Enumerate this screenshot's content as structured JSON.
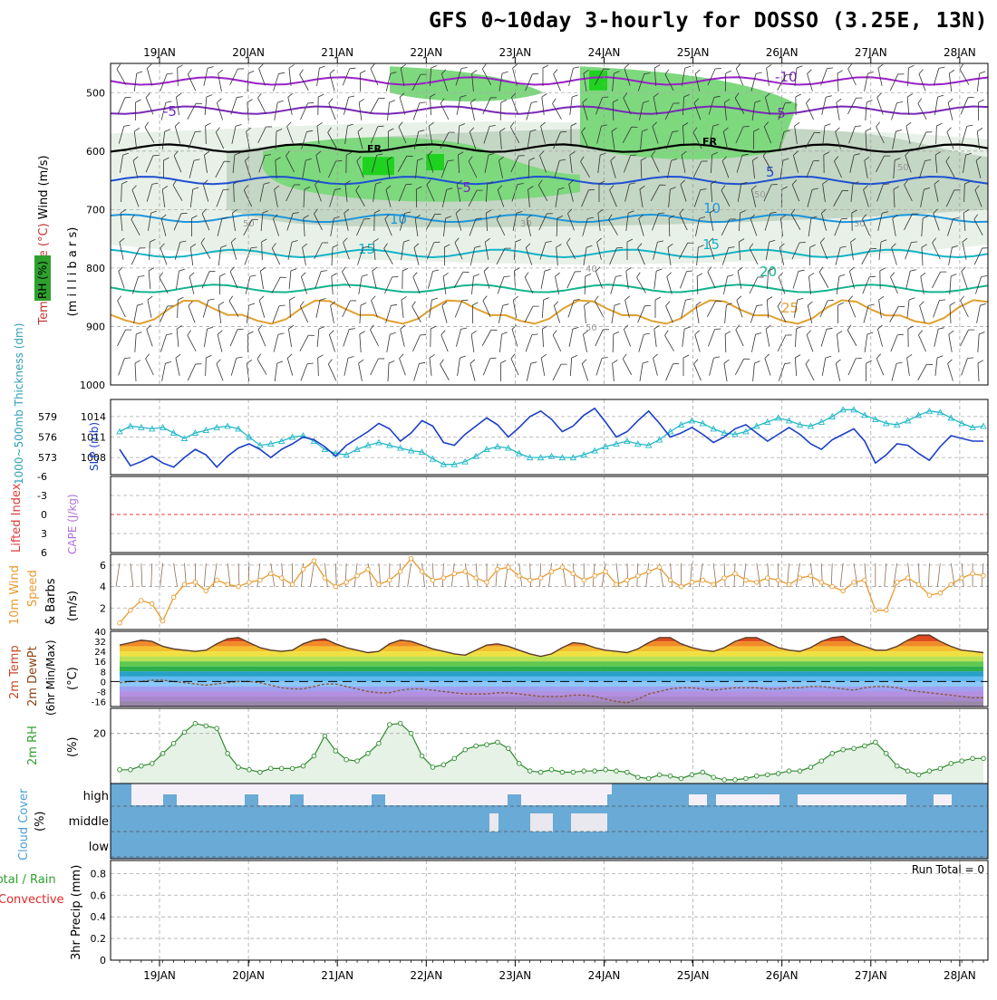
{
  "title": "GFS 0~10day 3-hourly for DOSSO (3.25E, 13N)",
  "chart_data": [
    {
      "id": "upper_air",
      "type": "heatmap",
      "ylabel_parts": [
        {
          "text": "Wind (m/s)",
          "color": "#000000"
        },
        {
          "text": "Temperature (°C)",
          "color": "#c83232"
        },
        {
          "text": "RH (%)",
          "color": "#2ea02e"
        }
      ],
      "ylabel2": "(m i l l i b a r s)",
      "ylim": [
        450,
        1000
      ],
      "ytick_labels": [
        "500",
        "600",
        "700",
        "800",
        "900",
        "1000"
      ],
      "ytick_values": [
        500,
        600,
        700,
        800,
        900,
        1000
      ],
      "x_dates": [
        "19JAN",
        "20JAN",
        "21JAN",
        "22JAN",
        "23JAN",
        "24JAN",
        "25JAN",
        "26JAN",
        "27JAN",
        "28JAN"
      ],
      "contour_labels": [
        "-10",
        "-5",
        "-5",
        "FR",
        "FR",
        "-5",
        "5",
        "10",
        "10",
        "15",
        "15",
        "20",
        "25"
      ],
      "rh_labels": [
        "50",
        "50",
        "50",
        "30",
        "30",
        "40",
        "50"
      ],
      "isotherms": [
        {
          "label": "-10",
          "color": "#9b20c8",
          "pressure_mb": 480
        },
        {
          "label": "-5",
          "color": "#7a28b8",
          "pressure_mb": 530
        },
        {
          "label": "FR",
          "color": "#000000",
          "pressure_mb": 595
        },
        {
          "label": "5",
          "color": "#1e50d2",
          "pressure_mb": 650
        },
        {
          "label": "10",
          "color": "#1e96dc",
          "pressure_mb": 715
        },
        {
          "label": "15",
          "color": "#14b4c8",
          "pressure_mb": 775
        },
        {
          "label": "20",
          "color": "#14b48c",
          "pressure_mb": 835
        },
        {
          "label": "25",
          "color": "#e0a030",
          "pressure_mb": 880
        }
      ]
    },
    {
      "id": "thickness_slp",
      "type": "line",
      "ylabel_left": "1000~500mb Thickness (dm)",
      "ylabel_right": "SLP (mb)",
      "yticks_left": [
        "579",
        "576",
        "573"
      ],
      "yticks_right": [
        "1014",
        "1011",
        "1008"
      ],
      "ylim_thickness": [
        570.5,
        581.5
      ],
      "series": [
        {
          "name": "Thickness",
          "color": "#22b8c8",
          "values": [
            576.8,
            577.6,
            577.4,
            577.2,
            577.4,
            576.6,
            575.8,
            576.6,
            577.0,
            577.4,
            577.6,
            577.2,
            576.0,
            574.8,
            575.0,
            575.4,
            576.0,
            576.2,
            575.4,
            574.2,
            573.6,
            573.4,
            574.2,
            574.8,
            575.2,
            574.8,
            574.4,
            574.0,
            573.8,
            572.8,
            572.0,
            572.0,
            572.4,
            573.2,
            574.2,
            574.6,
            574.4,
            573.6,
            573.0,
            573.0,
            573.2,
            573.0,
            573.0,
            573.4,
            574.0,
            574.6,
            575.0,
            575.4,
            575.0,
            574.8,
            575.6,
            576.8,
            577.8,
            578.4,
            578.0,
            577.2,
            576.6,
            576.4,
            576.8,
            577.6,
            578.2,
            578.8,
            578.4,
            577.8,
            577.6,
            578.2,
            579.0,
            580.0,
            580.0,
            579.2,
            578.6,
            578.0,
            577.8,
            578.4,
            579.2,
            579.8,
            579.6,
            578.8,
            578.0,
            577.4,
            577.6
          ]
        },
        {
          "name": "SLP",
          "color": "#1a3fc8",
          "values": [
            1009.2,
            1006.8,
            1007.4,
            1008.2,
            1007.2,
            1006.6,
            1008.0,
            1009.2,
            1008.4,
            1006.6,
            1008.2,
            1009.4,
            1010.0,
            1009.2,
            1008.0,
            1009.2,
            1010.0,
            1011.0,
            1010.6,
            1009.6,
            1008.2,
            1009.8,
            1010.8,
            1011.8,
            1013.0,
            1012.2,
            1010.4,
            1011.6,
            1013.4,
            1012.6,
            1010.2,
            1009.8,
            1011.4,
            1012.6,
            1013.8,
            1012.8,
            1011.0,
            1012.4,
            1014.0,
            1014.8,
            1013.6,
            1011.8,
            1012.6,
            1014.2,
            1015.2,
            1013.2,
            1011.0,
            1011.8,
            1013.4,
            1014.8,
            1013.0,
            1011.0,
            1011.6,
            1012.4,
            1011.4,
            1010.2,
            1011.0,
            1012.2,
            1012.8,
            1011.6,
            1010.4,
            1011.4,
            1012.4,
            1011.4,
            1010.0,
            1009.2,
            1010.6,
            1011.4,
            1012.2,
            1010.4,
            1007.2,
            1008.4,
            1010.0,
            1009.8,
            1008.6,
            1007.6,
            1009.6,
            1011.2,
            1010.8,
            1010.4,
            1010.4
          ]
        }
      ]
    },
    {
      "id": "cape_li",
      "type": "line",
      "ylabel_left": "Lifted Index",
      "ylabel_right": "CAPE (J/kg)",
      "yticks": [
        "-6",
        "-3",
        "0",
        "3",
        "6"
      ],
      "ylim": [
        -6,
        6
      ],
      "zero_line": 0
    },
    {
      "id": "wind10m",
      "type": "line",
      "ylabel": "10m Wind Speed & Barbs (m/s)",
      "ylabel_parts": [
        {
          "text": "10m Wind",
          "color": "#e89a30"
        },
        {
          "text": "Speed",
          "color": "#e89a30"
        },
        {
          "text": "& Barbs",
          "color": "#000000"
        },
        {
          "text": "(m/s)",
          "color": "#000000"
        }
      ],
      "yticks": [
        "2",
        "4",
        "6"
      ],
      "ylim": [
        0,
        7
      ],
      "series": [
        {
          "name": "Wind Speed",
          "color": "#e89a30",
          "values": [
            0.6,
            1.8,
            2.7,
            2.4,
            0.8,
            3.0,
            4.2,
            4.4,
            3.6,
            4.6,
            4.2,
            4.0,
            4.4,
            4.6,
            5.2,
            4.8,
            4.2,
            5.6,
            6.4,
            4.8,
            4.0,
            4.4,
            5.0,
            5.6,
            4.2,
            4.6,
            5.4,
            6.6,
            5.4,
            4.6,
            4.8,
            5.2,
            5.4,
            4.8,
            4.4,
            5.6,
            5.8,
            5.0,
            4.6,
            4.8,
            5.4,
            5.8,
            5.2,
            4.6,
            5.0,
            5.4,
            4.2,
            4.6,
            5.0,
            5.4,
            5.8,
            4.6,
            4.0,
            4.4,
            4.6,
            4.2,
            4.8,
            5.2,
            4.6,
            4.4,
            4.8,
            4.6,
            4.2,
            4.8,
            5.0,
            4.4,
            4.0,
            3.6,
            4.4,
            4.6,
            1.8,
            1.8,
            4.4,
            4.8,
            4.2,
            3.2,
            3.4,
            4.2,
            4.8,
            5.2,
            5.0
          ]
        }
      ]
    },
    {
      "id": "temp2m",
      "type": "area",
      "ylabel_parts": [
        {
          "text": "2m Temp",
          "color": "#c84828"
        },
        {
          "text": "2m DewPt",
          "color": "#8b4513"
        },
        {
          "text": "(6hr Min/Max)",
          "color": "#000000"
        },
        {
          "text": "(°C)",
          "color": "#000000"
        }
      ],
      "yticks": [
        "40",
        "32",
        "24",
        "16",
        "8",
        "0",
        "-8",
        "-16"
      ],
      "ylim": [
        -20,
        40
      ],
      "series": [
        {
          "name": "2m Temp",
          "color": "#5a3a28",
          "values": [
            29,
            31,
            33,
            32,
            28,
            26,
            25,
            24,
            25,
            30,
            34,
            35,
            31,
            27,
            25,
            24,
            25,
            30,
            33,
            34,
            30,
            27,
            25,
            23,
            24,
            30,
            33,
            32,
            29,
            26,
            24,
            22,
            21,
            25,
            29,
            30,
            28,
            25,
            22,
            20,
            22,
            27,
            31,
            30,
            27,
            25,
            24,
            23,
            26,
            31,
            35,
            35,
            30,
            27,
            25,
            24,
            27,
            32,
            35,
            35,
            31,
            27,
            25,
            24,
            27,
            32,
            35,
            36,
            31,
            28,
            25,
            25,
            28,
            33,
            37,
            37,
            32,
            28,
            25,
            24,
            23
          ]
        },
        {
          "name": "2m DewPt",
          "color": "#8b5a3c",
          "values": [
            -1,
            0,
            0,
            1,
            1,
            0,
            -1,
            -2,
            -3,
            -2,
            -1,
            0,
            0,
            -1,
            -3,
            -5,
            -6,
            -6,
            -4,
            -2,
            -2,
            -4,
            -6,
            -8,
            -9,
            -9,
            -7,
            -6,
            -6,
            -7,
            -8,
            -9,
            -10,
            -10,
            -10,
            -9,
            -9,
            -10,
            -11,
            -12,
            -12,
            -12,
            -11,
            -11,
            -12,
            -14,
            -16,
            -17,
            -14,
            -10,
            -8,
            -6,
            -5,
            -5,
            -6,
            -7,
            -6,
            -5,
            -5,
            -5,
            -6,
            -6,
            -5,
            -5,
            -4,
            -4,
            -5,
            -6,
            -7,
            -5,
            -4,
            -4,
            -5,
            -7,
            -8,
            -9,
            -10,
            -11,
            -12,
            -13,
            -13
          ]
        }
      ]
    },
    {
      "id": "rh2m",
      "type": "area",
      "ylabel": "2m RH",
      "yunit": "(%)",
      "yticks": [
        "20"
      ],
      "ylim": [
        0,
        30
      ],
      "series": [
        {
          "name": "2m RH",
          "color": "#2e8b2e",
          "values": [
            5.5,
            5.5,
            7.0,
            8.0,
            12.0,
            16.0,
            20.5,
            24.0,
            23.0,
            22.0,
            12.0,
            6.5,
            5.5,
            4.5,
            6.0,
            6.0,
            6.0,
            7.0,
            11.0,
            19.0,
            13.0,
            9.5,
            9.0,
            12.0,
            16.0,
            23.5,
            24.0,
            20.0,
            11.0,
            6.5,
            7.5,
            10.0,
            13.5,
            15.0,
            15.5,
            16.5,
            14.0,
            8.0,
            5.0,
            4.5,
            5.5,
            4.5,
            4.5,
            5.0,
            5.0,
            5.5,
            5.0,
            4.5,
            2.5,
            2.0,
            3.5,
            3.0,
            2.0,
            3.5,
            4.5,
            2.5,
            1.5,
            1.5,
            2.0,
            3.0,
            3.5,
            4.0,
            5.0,
            5.0,
            6.5,
            9.0,
            12.0,
            13.5,
            14.0,
            15.0,
            16.5,
            12.0,
            7.0,
            5.0,
            3.5,
            5.0,
            6.0,
            8.0,
            9.0,
            10.0,
            10.0
          ]
        }
      ]
    },
    {
      "id": "cloud_cover",
      "type": "bar",
      "ylabel": "Cloud Cover",
      "yunit": "(%)",
      "levels": [
        "high",
        "middle",
        "low"
      ],
      "color_cloud": "#6aaad6",
      "color_clear": "#f5f0f8"
    },
    {
      "id": "precip",
      "type": "bar",
      "ylabel_parts": [
        {
          "text": "Total / Rain",
          "color": "#2ea02e"
        },
        {
          "text": "Convective",
          "color": "#e02828"
        }
      ],
      "ylabel2": "3hr Precip (mm)",
      "yticks": [
        "0",
        "0.2",
        "0.4",
        "0.6",
        "0.8"
      ],
      "ylim": [
        0,
        0.92
      ],
      "values": [],
      "run_total_label": "Run Total = 0"
    }
  ]
}
